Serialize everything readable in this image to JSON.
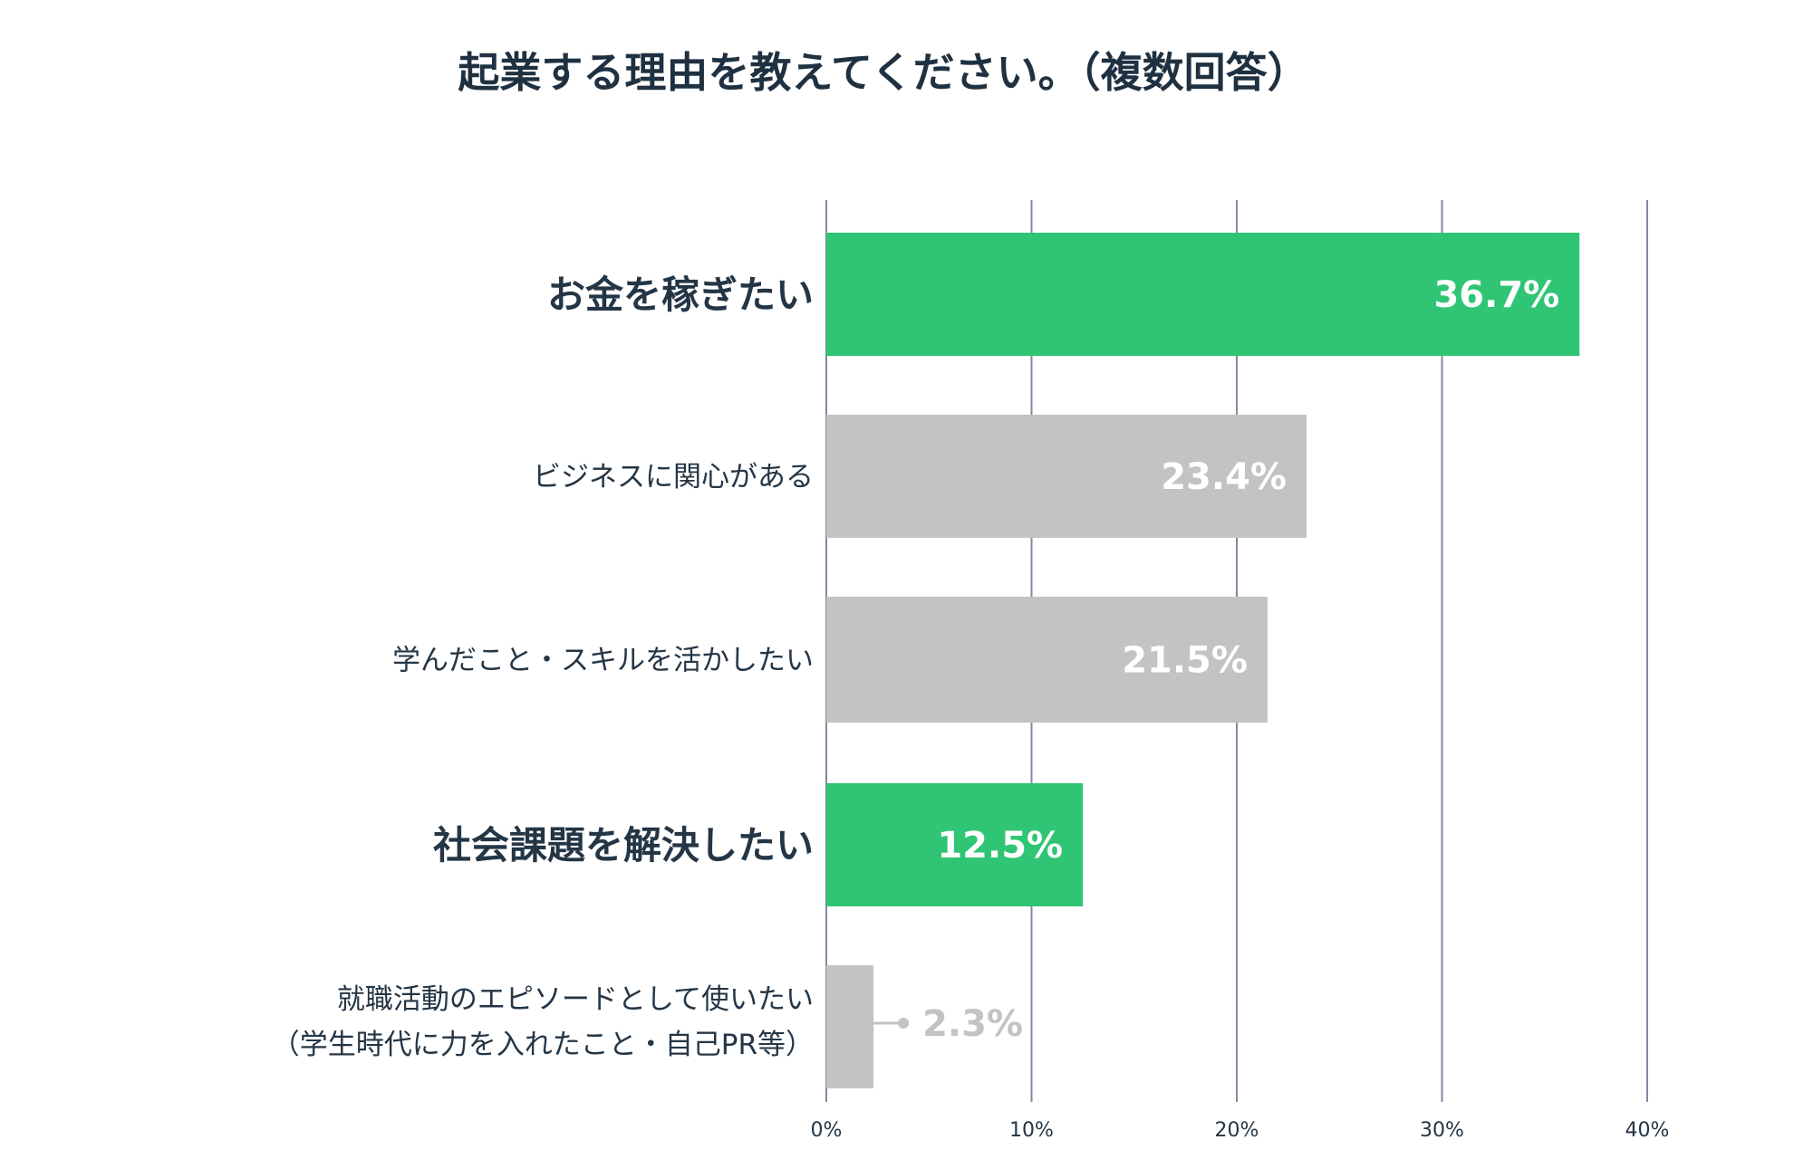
{
  "chart_data": {
    "type": "bar",
    "orientation": "horizontal",
    "title": "起業する理由を教えてください。（複数回答）",
    "categories": [
      [
        "お金を稼ぎたい"
      ],
      [
        "ビジネスに関心がある"
      ],
      [
        "学んだこと・スキルを活かしたい"
      ],
      [
        "社会課題を解決したい"
      ],
      [
        "就職活動のエピソードとして使いたい",
        "（学生時代に力を入れたこと・自己PR等）"
      ]
    ],
    "values": [
      36.7,
      23.4,
      21.5,
      12.5,
      2.3
    ],
    "value_labels": [
      "36.7%",
      "23.4%",
      "21.5%",
      "12.5%",
      "2.3%"
    ],
    "highlighted": [
      true,
      false,
      false,
      true,
      false
    ],
    "xlim": [
      0,
      40
    ],
    "x_ticks": [
      0,
      10,
      20,
      30,
      40
    ],
    "x_tick_labels": [
      "0%",
      "10%",
      "20%",
      "30%",
      "40%"
    ],
    "grid": true,
    "legend": "none",
    "colors": {
      "highlight": "#2fc574",
      "default": "#c3c3c3",
      "grid": "#7f8ba0",
      "title": "#1f3141",
      "label": "#243646",
      "value_inside": "#ffffff",
      "value_outside": "#c3c3c3"
    }
  }
}
